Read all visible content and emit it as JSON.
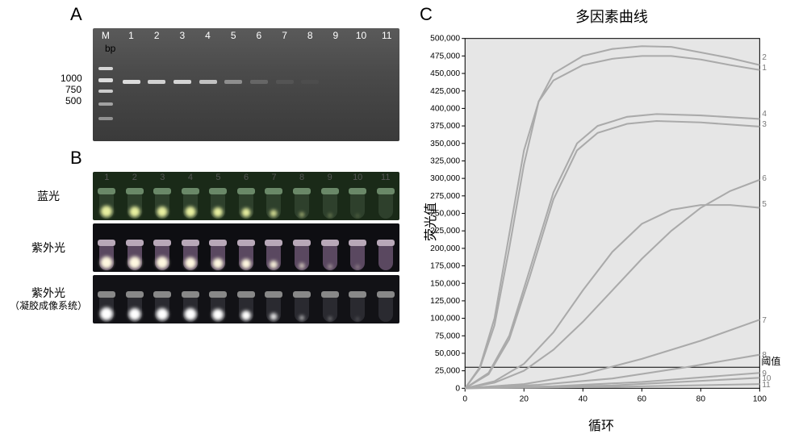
{
  "panels": {
    "A": "A",
    "B": "B",
    "C": "C"
  },
  "gelA": {
    "bp_unit": "bp",
    "ladder_labels": [
      "1000",
      "750",
      "500"
    ],
    "lane_headers": [
      "M",
      "1",
      "2",
      "3",
      "4",
      "5",
      "6",
      "7",
      "8",
      "9",
      "10",
      "11"
    ],
    "background": "#4a4a4a",
    "ladder_bands": [
      {
        "y": 48,
        "w": 18,
        "h": 4,
        "op": 0.9
      },
      {
        "y": 62,
        "w": 18,
        "h": 5,
        "op": 0.95
      },
      {
        "y": 76,
        "w": 18,
        "h": 4,
        "op": 0.85
      },
      {
        "y": 92,
        "w": 18,
        "h": 4,
        "op": 0.6
      },
      {
        "y": 110,
        "w": 18,
        "h": 4,
        "op": 0.5
      }
    ],
    "sample_bands_y": 64,
    "sample_intensity": [
      0.95,
      0.88,
      0.9,
      0.78,
      0.45,
      0.2,
      0.08,
      0.03,
      0.0,
      0.0,
      0.0
    ]
  },
  "panelB": {
    "lane_nums": [
      "1",
      "2",
      "3",
      "4",
      "5",
      "6",
      "7",
      "8",
      "9",
      "10",
      "11"
    ],
    "rows": [
      {
        "label": "蓝光",
        "bg": "#1a2a18",
        "cap": "#6a8868",
        "body": "#2e402c",
        "glow_color": "#e8f0a0",
        "glow": [
          14,
          13,
          13,
          13,
          12,
          11,
          9,
          6,
          4,
          3,
          0
        ]
      },
      {
        "label": "紫外光",
        "bg": "#0e0e12",
        "cap": "#b8a8b8",
        "body": "#5a4860",
        "glow_color": "#fff8e0",
        "glow": [
          15,
          15,
          15,
          14,
          13,
          12,
          10,
          7,
          5,
          4,
          0
        ]
      },
      {
        "label": "紫外光",
        "sublabel": "（凝胶成像系统）",
        "bg": "#121216",
        "cap": "#888",
        "body": "#2a2a30",
        "glow_color": "#ffffff",
        "glow": [
          16,
          15,
          15,
          15,
          14,
          12,
          9,
          6,
          4,
          3,
          0
        ]
      }
    ]
  },
  "chart": {
    "title": "多因素曲线",
    "ylabel": "荧光值",
    "xlabel": "循环",
    "xlim": [
      0,
      100
    ],
    "ylim": [
      0,
      500000
    ],
    "xtick_step": 20,
    "ytick_step": 25000,
    "background": "#e6e6e6",
    "axis_color": "#000000",
    "line_color": "#aaaaaa",
    "line_width": 2,
    "threshold_y": 30000,
    "threshold_label": "阈值",
    "tick_fontsize": 10,
    "label_fontsize": 16,
    "title_fontsize": 18,
    "series": [
      {
        "id": "1",
        "label_y": 455000,
        "pts": [
          [
            0,
            0
          ],
          [
            5,
            30000
          ],
          [
            10,
            100000
          ],
          [
            15,
            220000
          ],
          [
            20,
            340000
          ],
          [
            25,
            410000
          ],
          [
            30,
            440000
          ],
          [
            40,
            462000
          ],
          [
            50,
            471000
          ],
          [
            60,
            475000
          ],
          [
            70,
            475000
          ],
          [
            80,
            470000
          ],
          [
            90,
            462000
          ],
          [
            100,
            455000
          ]
        ]
      },
      {
        "id": "2",
        "label_y": 470000,
        "pts": [
          [
            0,
            0
          ],
          [
            5,
            28000
          ],
          [
            10,
            90000
          ],
          [
            15,
            200000
          ],
          [
            20,
            320000
          ],
          [
            25,
            410000
          ],
          [
            30,
            450000
          ],
          [
            40,
            475000
          ],
          [
            50,
            485000
          ],
          [
            60,
            489000
          ],
          [
            70,
            488000
          ],
          [
            80,
            480000
          ],
          [
            90,
            472000
          ],
          [
            100,
            462000
          ]
        ]
      },
      {
        "id": "3",
        "label_y": 375000,
        "pts": [
          [
            0,
            0
          ],
          [
            8,
            20000
          ],
          [
            15,
            70000
          ],
          [
            22,
            160000
          ],
          [
            30,
            270000
          ],
          [
            38,
            340000
          ],
          [
            45,
            365000
          ],
          [
            55,
            378000
          ],
          [
            65,
            382000
          ],
          [
            80,
            380000
          ],
          [
            100,
            374000
          ]
        ]
      },
      {
        "id": "4",
        "label_y": 390000,
        "pts": [
          [
            0,
            0
          ],
          [
            8,
            22000
          ],
          [
            15,
            75000
          ],
          [
            22,
            170000
          ],
          [
            30,
            280000
          ],
          [
            38,
            350000
          ],
          [
            45,
            375000
          ],
          [
            55,
            388000
          ],
          [
            65,
            392000
          ],
          [
            80,
            390000
          ],
          [
            100,
            385000
          ]
        ]
      },
      {
        "id": "5",
        "label_y": 262000,
        "pts": [
          [
            0,
            0
          ],
          [
            10,
            10000
          ],
          [
            20,
            35000
          ],
          [
            30,
            80000
          ],
          [
            40,
            140000
          ],
          [
            50,
            195000
          ],
          [
            60,
            235000
          ],
          [
            70,
            255000
          ],
          [
            80,
            262000
          ],
          [
            90,
            262000
          ],
          [
            100,
            258000
          ]
        ]
      },
      {
        "id": "6",
        "label_y": 298000,
        "pts": [
          [
            0,
            0
          ],
          [
            10,
            8000
          ],
          [
            20,
            25000
          ],
          [
            30,
            55000
          ],
          [
            40,
            95000
          ],
          [
            50,
            140000
          ],
          [
            60,
            185000
          ],
          [
            70,
            225000
          ],
          [
            80,
            258000
          ],
          [
            90,
            282000
          ],
          [
            100,
            298000
          ]
        ]
      },
      {
        "id": "7",
        "label_y": 98000,
        "pts": [
          [
            0,
            0
          ],
          [
            20,
            6000
          ],
          [
            40,
            20000
          ],
          [
            60,
            42000
          ],
          [
            80,
            68000
          ],
          [
            100,
            98000
          ]
        ]
      },
      {
        "id": "8",
        "label_y": 48000,
        "pts": [
          [
            0,
            0
          ],
          [
            25,
            5000
          ],
          [
            50,
            14000
          ],
          [
            75,
            30000
          ],
          [
            100,
            48000
          ]
        ]
      },
      {
        "id": "9",
        "label_y": 22000,
        "pts": [
          [
            0,
            0
          ],
          [
            30,
            3000
          ],
          [
            60,
            9000
          ],
          [
            100,
            22000
          ]
        ]
      },
      {
        "id": "10",
        "label_y": 15000,
        "pts": [
          [
            0,
            0
          ],
          [
            50,
            4000
          ],
          [
            100,
            15000
          ]
        ]
      },
      {
        "id": "11",
        "label_y": 6000,
        "pts": [
          [
            0,
            0
          ],
          [
            50,
            2000
          ],
          [
            100,
            6000
          ]
        ]
      }
    ]
  }
}
